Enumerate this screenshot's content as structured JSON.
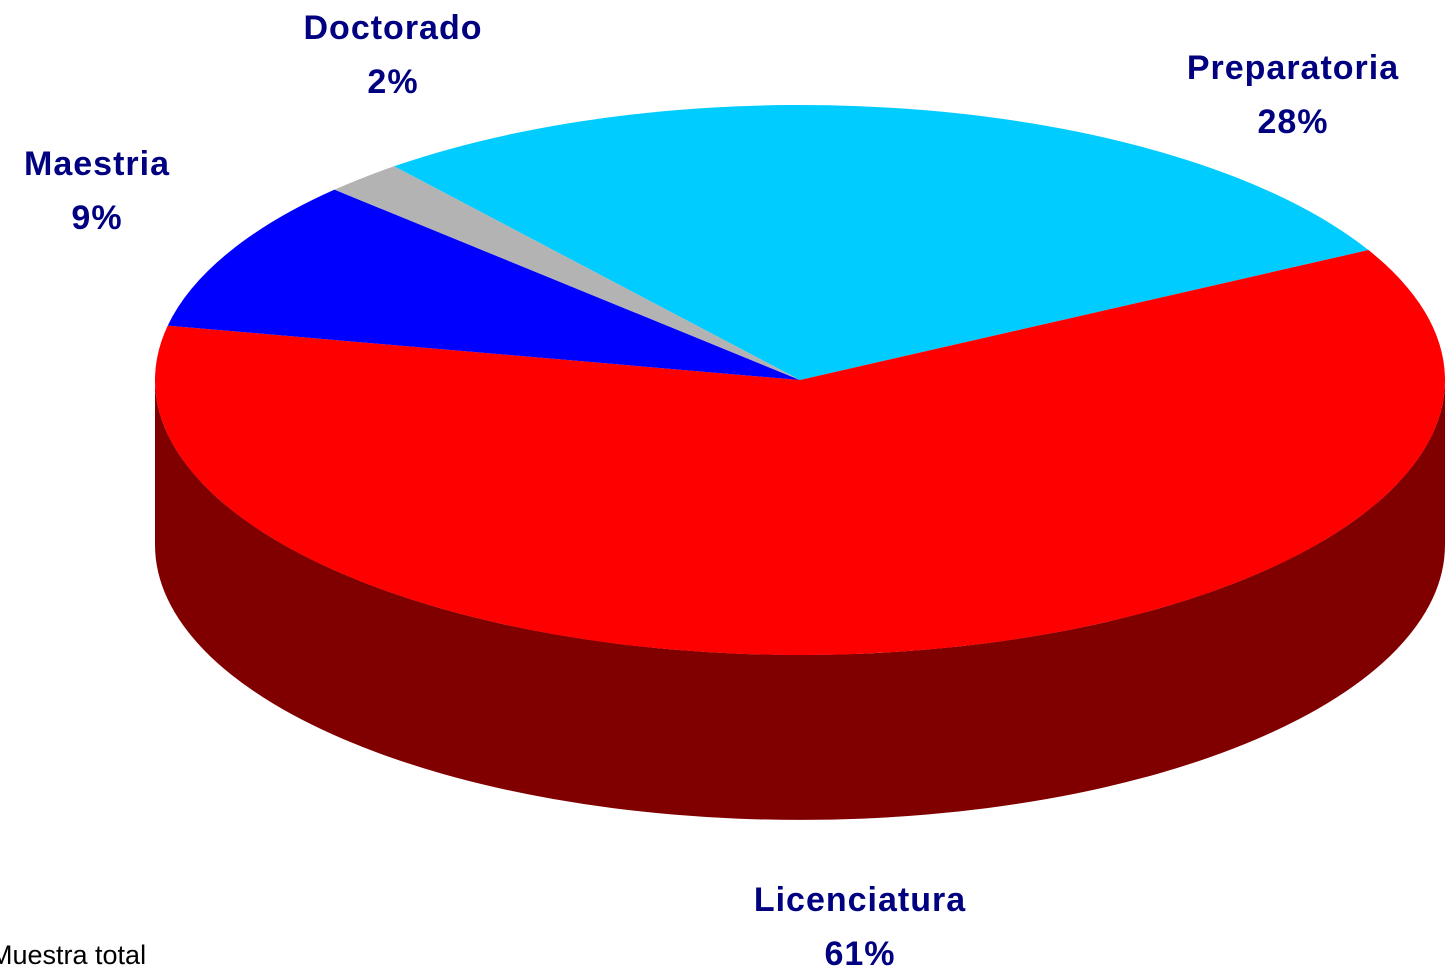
{
  "chart_data": {
    "type": "pie3d",
    "categories": [
      "Preparatoria",
      "Licenciatura",
      "Maestria",
      "Doctorado"
    ],
    "values": [
      28,
      61,
      9,
      2
    ],
    "value_labels": [
      "28%",
      "61%",
      "9%",
      "2%"
    ],
    "colors": [
      "#00ccff",
      "#ff0000",
      "#0000ff",
      "#b3b3b3"
    ],
    "footnote": "Muestra total"
  }
}
